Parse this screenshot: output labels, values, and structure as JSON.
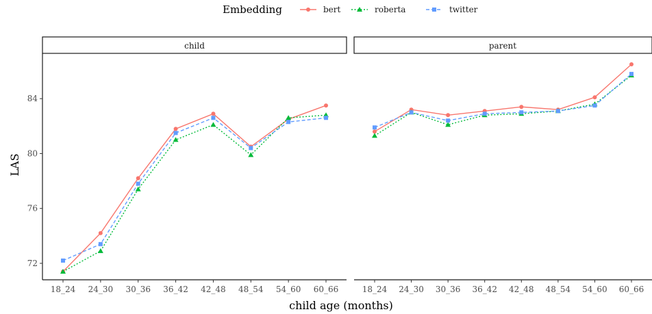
{
  "chart_data": {
    "type": "line",
    "xlabel": "child age (months)",
    "ylabel": "LAS",
    "categories": [
      "18_24",
      "24_30",
      "30_36",
      "36_42",
      "42_48",
      "48_54",
      "54_60",
      "60_66"
    ],
    "ylim": [
      70.8,
      87.3
    ],
    "yticks": [
      72,
      76,
      80,
      84
    ],
    "grid": false,
    "legend": {
      "title": "Embedding",
      "placement": "top",
      "entries": [
        "bert",
        "roberta",
        "twitter"
      ]
    },
    "facets": [
      "child",
      "parent"
    ],
    "series_styles": [
      {
        "name": "bert",
        "color": "#F8766D",
        "marker": "circle",
        "dash": "solid"
      },
      {
        "name": "roberta",
        "color": "#00BA38",
        "marker": "triangle",
        "dash": "dotted"
      },
      {
        "name": "twitter",
        "color": "#619CFF",
        "marker": "square",
        "dash": "dashed"
      }
    ],
    "panels": [
      {
        "facet": "child",
        "series": [
          {
            "name": "bert",
            "values": [
              71.4,
              74.2,
              78.2,
              81.8,
              82.9,
              80.5,
              82.5,
              83.5
            ]
          },
          {
            "name": "roberta",
            "values": [
              71.4,
              72.9,
              77.4,
              81.0,
              82.1,
              79.9,
              82.6,
              82.8
            ]
          },
          {
            "name": "twitter",
            "values": [
              72.2,
              73.4,
              77.8,
              81.5,
              82.6,
              80.4,
              82.3,
              82.6
            ]
          }
        ]
      },
      {
        "facet": "parent",
        "series": [
          {
            "name": "bert",
            "values": [
              81.6,
              83.2,
              82.8,
              83.1,
              83.4,
              83.2,
              84.1,
              86.5
            ]
          },
          {
            "name": "roberta",
            "values": [
              81.3,
              83.0,
              82.1,
              82.8,
              82.9,
              83.1,
              83.6,
              85.7
            ]
          },
          {
            "name": "twitter",
            "values": [
              81.9,
              83.0,
              82.4,
              82.9,
              83.0,
              83.1,
              83.5,
              85.8
            ]
          }
        ]
      }
    ]
  }
}
